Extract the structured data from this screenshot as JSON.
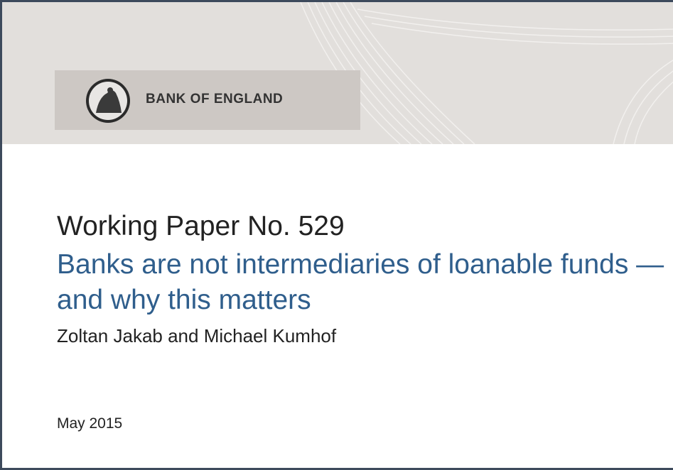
{
  "header": {
    "organization": "BANK OF ENGLAND"
  },
  "title": "Working Paper No. 529",
  "subtitle": "Banks are not intermediaries of loanable funds — and why this matters",
  "authors": "Zoltan Jakab and Michael Kumhof",
  "date": "May 2015"
}
